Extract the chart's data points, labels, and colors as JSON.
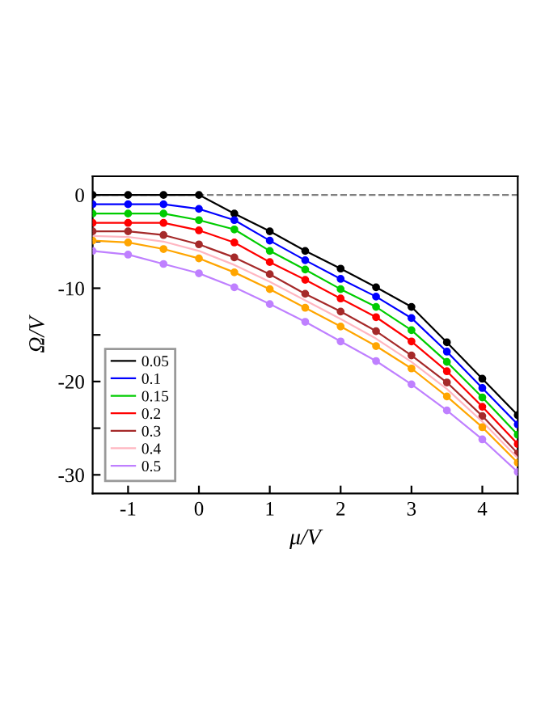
{
  "chart_data": {
    "type": "line",
    "xlabel": "μ/V",
    "ylabel": "Ω/V",
    "x": [
      -1.5,
      -1,
      -0.5,
      0,
      0.5,
      1,
      1.5,
      2,
      2.5,
      3,
      3.5,
      4,
      4.5
    ],
    "xlim": [
      -1.5,
      4.5
    ],
    "xticks": [
      -1,
      0,
      1,
      2,
      3,
      4
    ],
    "ylim": [
      -32,
      2
    ],
    "yticks": [
      -30,
      {
        "value": -25,
        "label": null
      },
      -20,
      {
        "value": -15,
        "label": null
      },
      -10,
      {
        "value": -5,
        "label": null
      },
      0
    ],
    "marker": "circle",
    "legend": "bottom left",
    "grid": false,
    "ref_lines": [
      {
        "axis": "y",
        "value": 0,
        "color": "#808080",
        "line_style": "dashed"
      }
    ],
    "series": [
      {
        "name": "0.05",
        "color": "#000000",
        "values": [
          0,
          0,
          0,
          0,
          -2.0,
          -3.9,
          -6.0,
          -7.9,
          -9.9,
          -12.0,
          -15.8,
          -19.7,
          -23.6
        ]
      },
      {
        "name": "0.1",
        "color": "#0000ff",
        "values": [
          -1.0,
          -1.0,
          -1.0,
          -1.5,
          -2.7,
          -4.9,
          -7.0,
          -9.0,
          -10.9,
          -13.2,
          -16.8,
          -20.7,
          -24.6
        ]
      },
      {
        "name": "0.15",
        "color": "#00cc00",
        "values": [
          -2.0,
          -2.0,
          -2.0,
          -2.7,
          -3.7,
          -6.0,
          -8.0,
          -10.1,
          -12.0,
          -14.5,
          -17.9,
          -21.7,
          -25.7
        ]
      },
      {
        "name": "0.2",
        "color": "#ff0000",
        "values": [
          -3.0,
          -3.0,
          -3.0,
          -3.8,
          -5.1,
          -7.2,
          -9.1,
          -11.1,
          -13.1,
          -15.7,
          -18.9,
          -22.7,
          -26.7
        ]
      },
      {
        "name": "0.3",
        "color": "#a52a2a",
        "values": [
          -3.9,
          -3.9,
          -4.3,
          -5.3,
          -6.7,
          -8.5,
          -10.6,
          -12.5,
          -14.6,
          -17.2,
          -20.1,
          -23.7,
          -27.7
        ]
      },
      {
        "name": "0.4",
        "color": "#ffb6c1",
        "marker": "none",
        "values": [
          -4.4,
          -4.5,
          -5.0,
          -6.0,
          -7.5,
          -9.3,
          -11.3,
          -13.3,
          -15.4,
          -17.9,
          -20.8,
          -24.3,
          -28.2
        ]
      },
      {
        "name": "0.5",
        "color": "#bf80ff",
        "values": [
          -6.0,
          -6.4,
          -7.4,
          -8.4,
          -9.9,
          -11.7,
          -13.6,
          -15.7,
          -17.8,
          -20.3,
          -23.1,
          -26.2,
          -29.7
        ]
      },
      {
        "color": "#ffa500",
        "values": [
          -4.9,
          -5.1,
          -5.8,
          -6.8,
          -8.3,
          -10.1,
          -12.1,
          -14.1,
          -16.2,
          -18.6,
          -21.6,
          -24.9,
          -28.7
        ]
      }
    ]
  }
}
